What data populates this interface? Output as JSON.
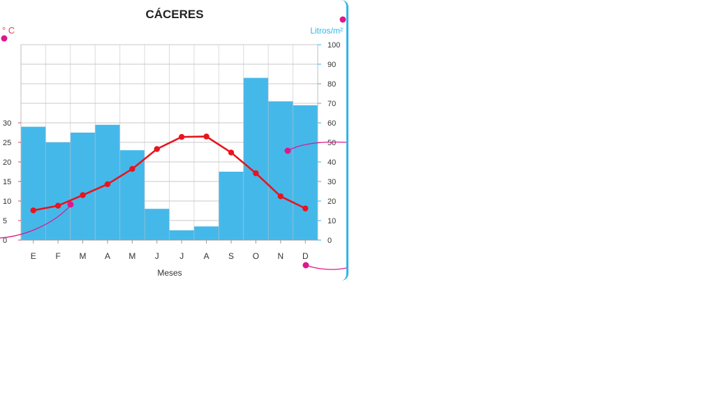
{
  "chart_data": {
    "type": "bar+line",
    "title": "CÁCERES",
    "xlabel": "Meses",
    "categories": [
      "E",
      "F",
      "M",
      "A",
      "M",
      "J",
      "J",
      "A",
      "S",
      "O",
      "N",
      "D"
    ],
    "series": [
      {
        "name": "",
        "type": "bar",
        "axis": "right",
        "values": [
          58,
          50,
          55,
          59,
          46,
          16,
          5,
          7,
          35,
          83,
          71,
          69
        ],
        "color": "#45b8ea"
      },
      {
        "name": "",
        "type": "line",
        "axis": "left",
        "values": [
          7.6,
          8.8,
          11.5,
          14.3,
          18.2,
          23.3,
          26.4,
          26.5,
          22.4,
          17.1,
          11.2,
          8.1
        ],
        "color": "#e8141e"
      }
    ],
    "yleft": {
      "label": "° C",
      "lim": [
        0,
        50
      ],
      "ticks": [
        0,
        5,
        10,
        15,
        20,
        25,
        30
      ]
    },
    "yright": {
      "label": "Litros/m²",
      "lim": [
        0,
        100
      ],
      "ticks": [
        0,
        10,
        20,
        30,
        40,
        50,
        60,
        70,
        80,
        90,
        100
      ]
    },
    "grid": true
  },
  "accent_colors": {
    "bars": "#45b8ea",
    "line": "#e8141e",
    "marker": "#e0168c",
    "frame": "#2fb6e8"
  }
}
